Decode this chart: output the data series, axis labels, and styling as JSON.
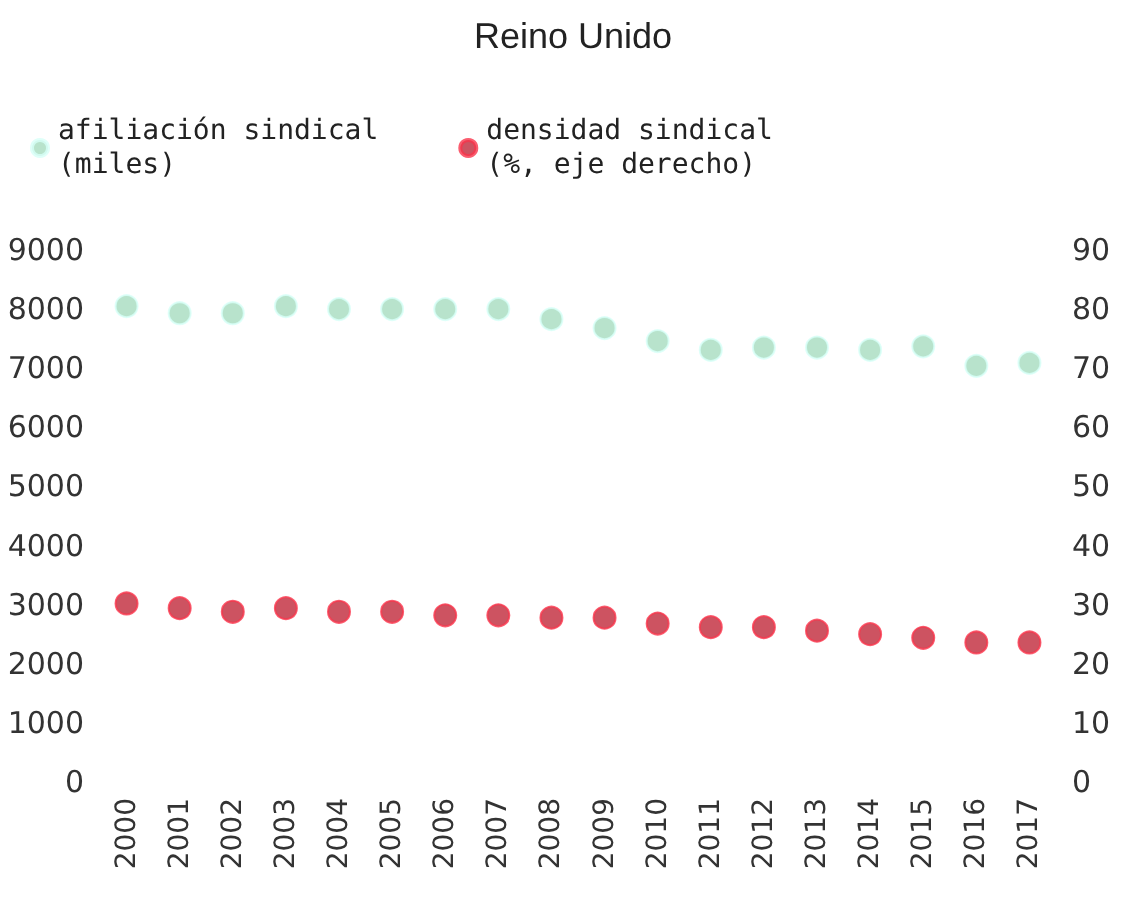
{
  "chart_data": {
    "type": "scatter",
    "title": "Reino Unido",
    "categories": [
      "2000",
      "2001",
      "2002",
      "2003",
      "2004",
      "2005",
      "2006",
      "2007",
      "2008",
      "2009",
      "2010",
      "2011",
      "2012",
      "2013",
      "2014",
      "2015",
      "2016",
      "2017"
    ],
    "series": [
      {
        "name": "afiliación sindical\n(miles)",
        "color": "#a6dcbf",
        "values": [
          8050,
          7930,
          7930,
          8050,
          8000,
          8000,
          8000,
          8000,
          7830,
          7680,
          7460,
          7310,
          7350,
          7350,
          7310,
          7370,
          7040,
          7090
        ]
      },
      {
        "name": "densidad sindical\n(%, eje derecho)",
        "color": "#c0283a",
        "axis": "y2",
        "values": [
          30.2,
          29.4,
          28.8,
          29.4,
          28.8,
          28.8,
          28.2,
          28.2,
          27.8,
          27.8,
          26.8,
          26.2,
          26.2,
          25.6,
          25.0,
          24.4,
          23.6,
          23.6
        ]
      }
    ],
    "ylim": [
      0,
      9000
    ],
    "yticks": [
      0,
      1000,
      2000,
      3000,
      4000,
      5000,
      6000,
      7000,
      8000,
      9000
    ],
    "y2lim": [
      0,
      90
    ],
    "y2ticks": [
      0,
      10,
      20,
      30,
      40,
      50,
      60,
      70,
      80,
      90
    ],
    "marker": "circle",
    "grid": false,
    "legend": "top"
  }
}
